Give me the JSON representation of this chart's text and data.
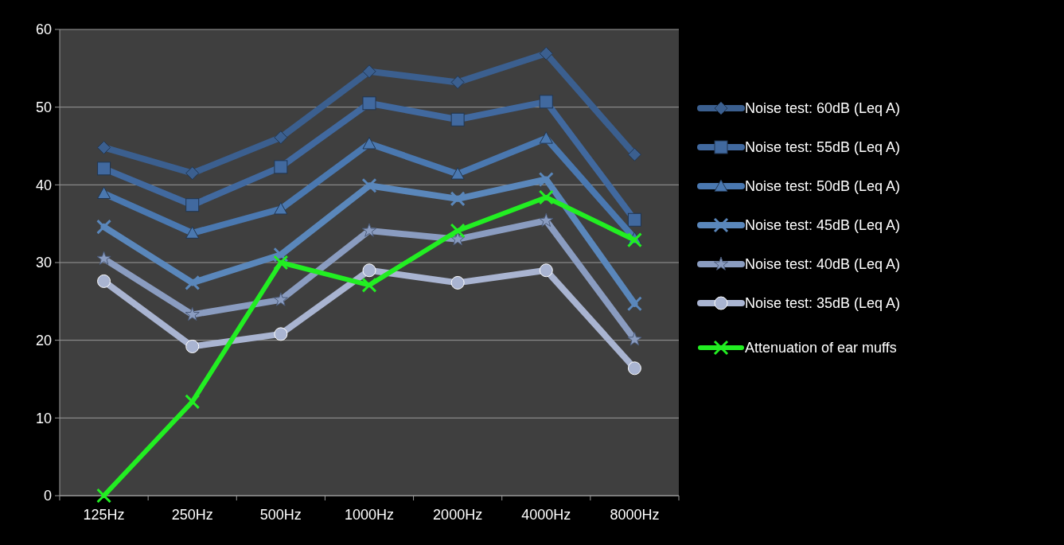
{
  "chart_data": {
    "type": "line",
    "categories": [
      "125Hz",
      "250Hz",
      "500Hz",
      "1000Hz",
      "2000Hz",
      "4000Hz",
      "8000Hz"
    ],
    "ylim": [
      0,
      60
    ],
    "yticks": [
      0,
      10,
      20,
      30,
      40,
      50,
      60
    ],
    "grid": "y",
    "legend": "right",
    "series": [
      {
        "name": "Noise test: 60dB (Leq A)",
        "color": "#3b5f8f",
        "marker": "diamond",
        "values": [
          44.8,
          41.5,
          46.1,
          54.6,
          53.2,
          56.9,
          43.9
        ]
      },
      {
        "name": "Noise test: 55dB (Leq A)",
        "color": "#41699f",
        "marker": "square",
        "values": [
          42.1,
          37.4,
          42.3,
          50.5,
          48.4,
          50.7,
          35.5
        ]
      },
      {
        "name": "Noise test: 50dB (Leq A)",
        "color": "#4a78b0",
        "marker": "triangle",
        "values": [
          38.9,
          33.8,
          36.9,
          45.3,
          41.4,
          46.0,
          33.1
        ]
      },
      {
        "name": "Noise test: 45dB (Leq A)",
        "color": "#5a87bb",
        "marker": "cross",
        "values": [
          34.6,
          27.4,
          31.0,
          39.9,
          38.2,
          40.7,
          24.7
        ]
      },
      {
        "name": "Noise test: 40dB (Leq A)",
        "color": "#8a9cc0",
        "marker": "star",
        "values": [
          30.5,
          23.3,
          25.2,
          34.1,
          33.0,
          35.4,
          20.1
        ]
      },
      {
        "name": "Noise test: 35dB (Leq A)",
        "color": "#a9b4d1",
        "marker": "circle",
        "values": [
          27.6,
          19.2,
          20.8,
          29.0,
          27.4,
          29.0,
          16.4
        ]
      },
      {
        "name": "Attenuation of ear muffs",
        "color": "#22ee22",
        "marker": "cross",
        "values": [
          0,
          12.1,
          30.0,
          27.1,
          34.1,
          38.4,
          32.9
        ]
      }
    ]
  }
}
